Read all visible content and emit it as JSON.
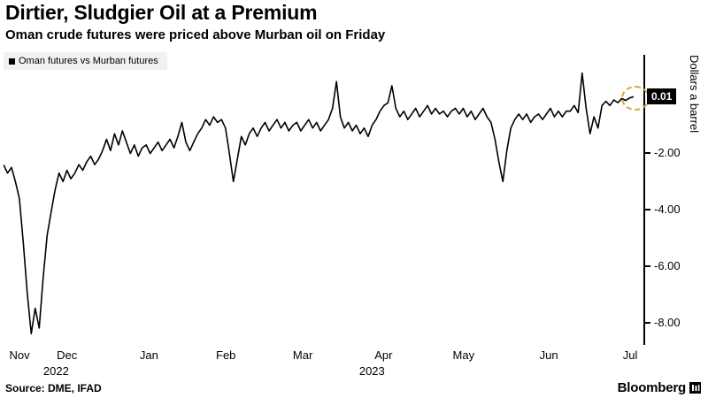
{
  "header": {
    "title": "Dirtier, Sludgier Oil at a Premium",
    "subtitle": "Oman crude futures were priced above Murban oil on Friday"
  },
  "legend": {
    "label": "Oman futures vs Murban futures"
  },
  "footer": {
    "source": "Source: DME, IFAD",
    "brand": "Bloomberg"
  },
  "chart_data": {
    "type": "line",
    "title": "Dirtier, Sludgier Oil at a Premium",
    "xlabel": "",
    "ylabel": "Dollars a barrel",
    "ylim": [
      -8.8,
      1.5
    ],
    "grid": false,
    "legend_position": "top-left",
    "line_color": "#000000",
    "highlight_color": "#dfa23b",
    "value_tag_bg": "#000000",
    "value_tag_fg": "#ffffff",
    "last_value_label": "0.01",
    "last_value": 0.01,
    "y_ticks": [
      {
        "label": "-2.00",
        "value": -2
      },
      {
        "label": "-4.00",
        "value": -4
      },
      {
        "label": "-6.00",
        "value": -6
      },
      {
        "label": "-8.00",
        "value": -8
      }
    ],
    "x_months": [
      {
        "label": "Nov",
        "pos": 0.025
      },
      {
        "label": "Dec",
        "pos": 0.099
      },
      {
        "label": "Jan",
        "pos": 0.227
      },
      {
        "label": "Feb",
        "pos": 0.347
      },
      {
        "label": "Mar",
        "pos": 0.467
      },
      {
        "label": "Apr",
        "pos": 0.593
      },
      {
        "label": "May",
        "pos": 0.718
      },
      {
        "label": "Jun",
        "pos": 0.851
      },
      {
        "label": "Jul",
        "pos": 0.978
      }
    ],
    "year_labels": [
      {
        "label": "2022",
        "pos": 0.082
      },
      {
        "label": "2023",
        "pos": 0.575
      }
    ],
    "series": [
      {
        "name": "Oman futures vs Murban futures",
        "values": [
          -2.4,
          -2.7,
          -2.5,
          -3.0,
          -3.6,
          -5.2,
          -7.0,
          -8.4,
          -7.5,
          -8.2,
          -6.4,
          -4.9,
          -4.1,
          -3.3,
          -2.7,
          -3.0,
          -2.6,
          -2.9,
          -2.7,
          -2.4,
          -2.6,
          -2.3,
          -2.1,
          -2.4,
          -2.2,
          -1.9,
          -1.5,
          -1.9,
          -1.3,
          -1.7,
          -1.2,
          -1.6,
          -2.0,
          -1.7,
          -2.1,
          -1.8,
          -1.7,
          -2.0,
          -1.8,
          -1.6,
          -1.9,
          -1.7,
          -1.5,
          -1.8,
          -1.4,
          -0.9,
          -1.6,
          -1.9,
          -1.6,
          -1.3,
          -1.1,
          -0.8,
          -1.0,
          -0.7,
          -0.9,
          -0.8,
          -1.1,
          -2.0,
          -3.0,
          -2.2,
          -1.4,
          -1.7,
          -1.3,
          -1.1,
          -1.4,
          -1.1,
          -0.9,
          -1.2,
          -1.0,
          -0.8,
          -1.1,
          -0.9,
          -1.2,
          -1.0,
          -0.9,
          -1.2,
          -1.0,
          -0.8,
          -1.1,
          -0.9,
          -1.2,
          -1.0,
          -0.8,
          -0.4,
          0.55,
          -0.7,
          -1.1,
          -0.9,
          -1.2,
          -1.0,
          -1.3,
          -1.1,
          -1.4,
          -1.0,
          -0.8,
          -0.5,
          -0.3,
          -0.2,
          0.4,
          -0.4,
          -0.7,
          -0.5,
          -0.8,
          -0.6,
          -0.4,
          -0.7,
          -0.5,
          -0.3,
          -0.6,
          -0.4,
          -0.6,
          -0.5,
          -0.7,
          -0.5,
          -0.4,
          -0.6,
          -0.4,
          -0.7,
          -0.5,
          -0.8,
          -0.6,
          -0.4,
          -0.7,
          -0.9,
          -1.5,
          -2.3,
          -3.0,
          -1.9,
          -1.1,
          -0.8,
          -0.6,
          -0.8,
          -0.6,
          -0.9,
          -0.7,
          -0.6,
          -0.8,
          -0.6,
          -0.4,
          -0.7,
          -0.5,
          -0.7,
          -0.5,
          -0.5,
          -0.3,
          -0.55,
          0.85,
          -0.4,
          -1.3,
          -0.7,
          -1.1,
          -0.3,
          -0.15,
          -0.3,
          -0.1,
          -0.2,
          -0.05,
          -0.12,
          -0.03,
          0.01
        ]
      }
    ]
  }
}
